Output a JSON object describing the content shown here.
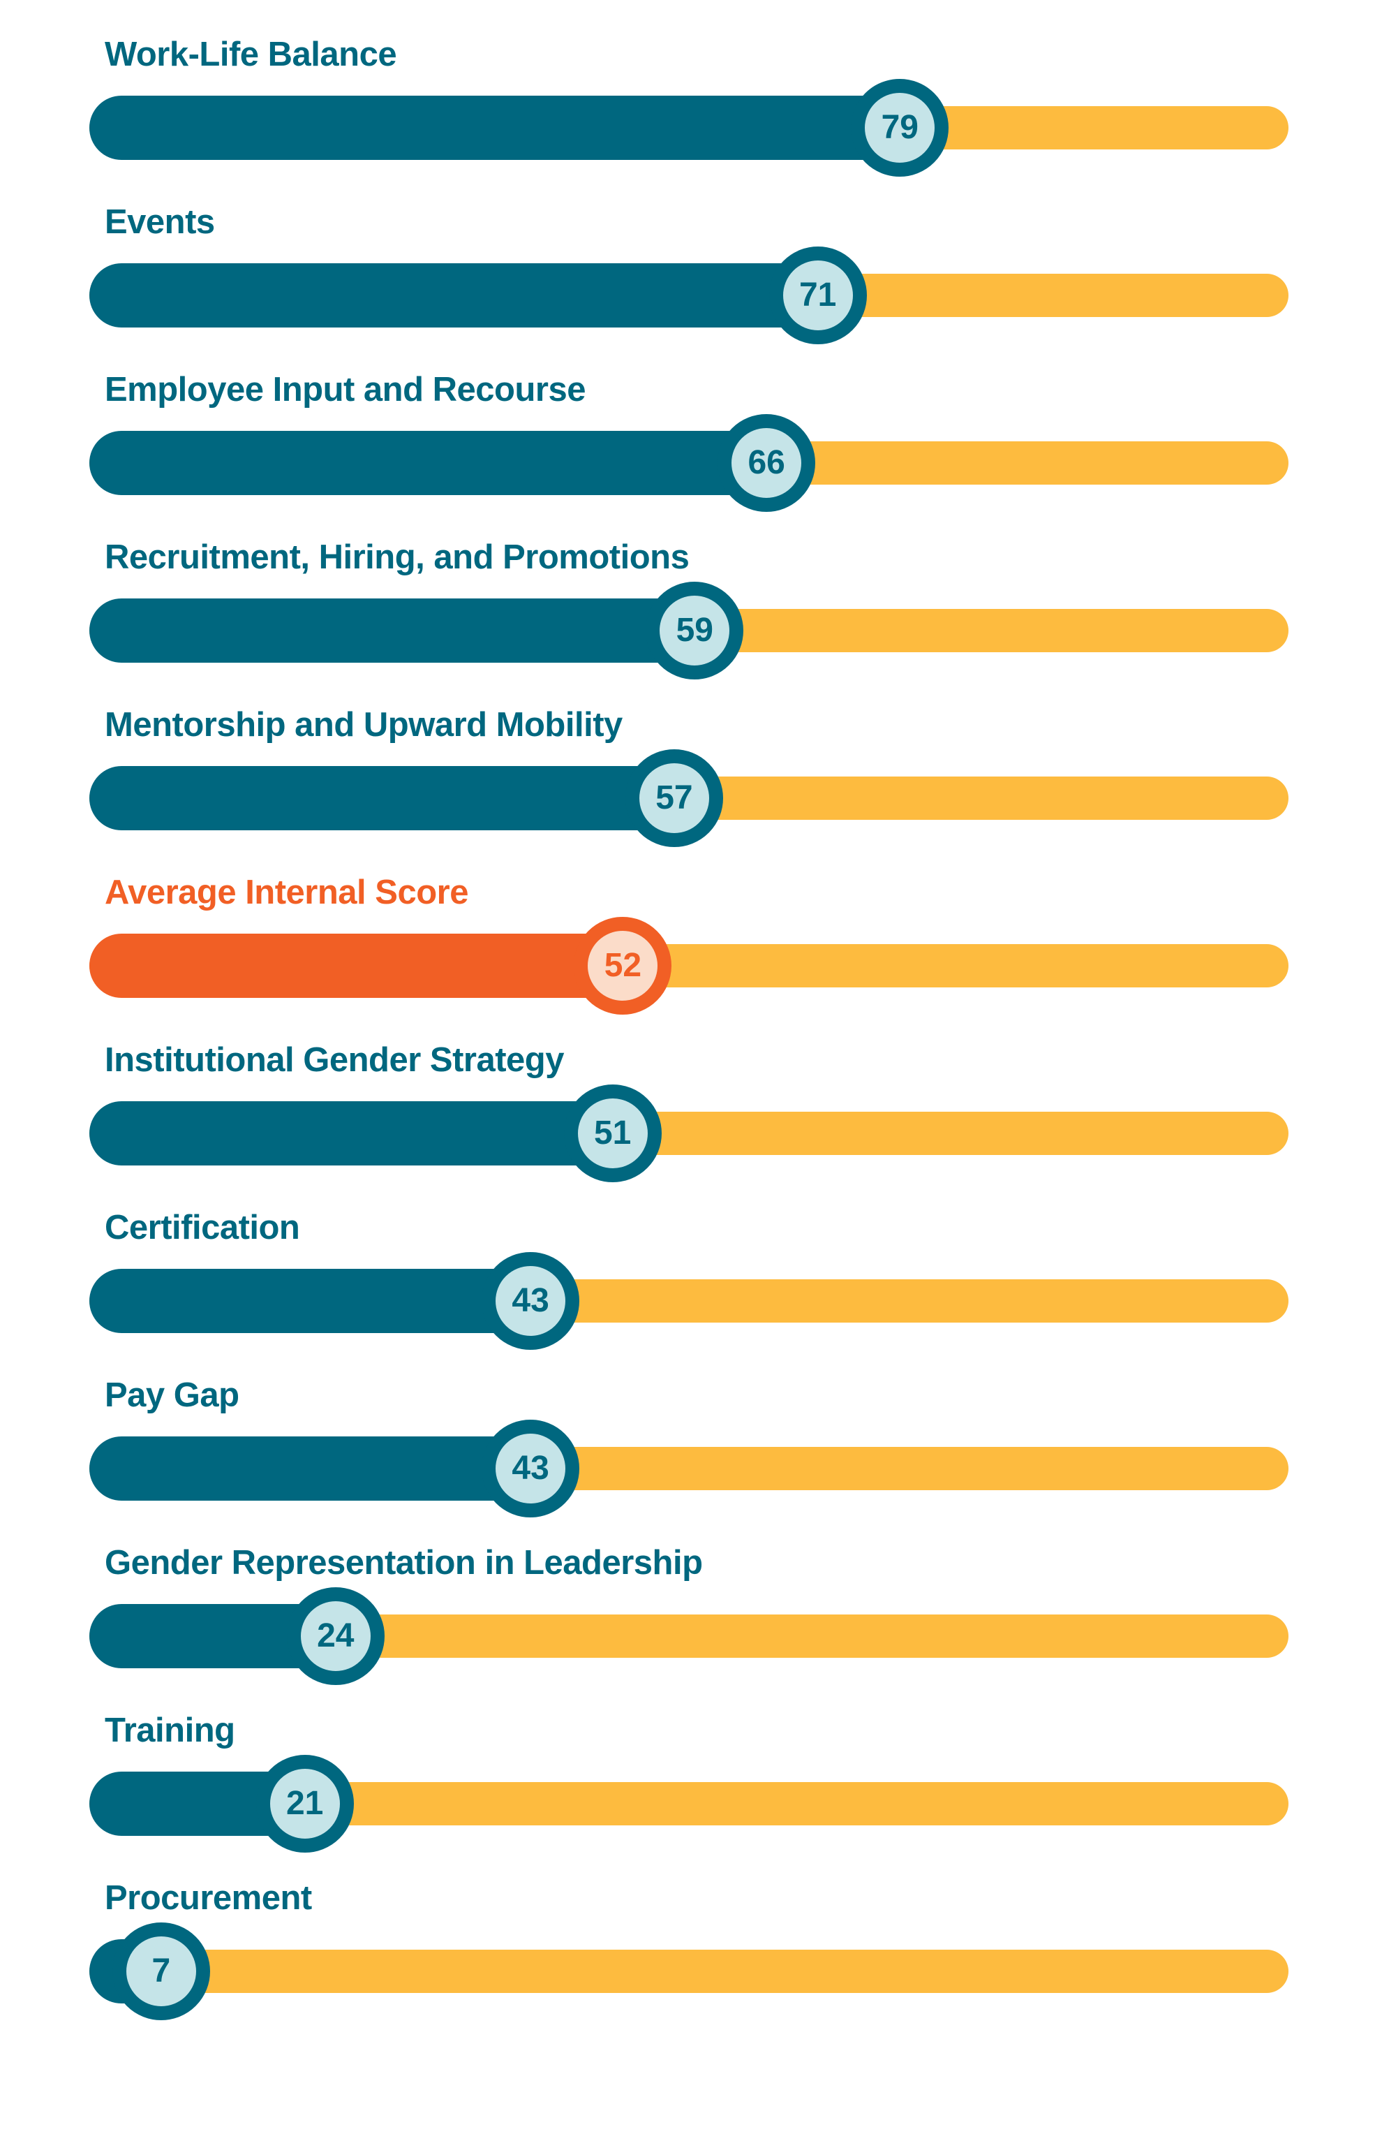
{
  "colors": {
    "bar": "#00677f",
    "track": "#fdbb3f",
    "highlight": "#f15f25",
    "marker_fill": "#c5e4e8",
    "marker_fill_highlight": "#fbdcc9",
    "label": "#00677f"
  },
  "chart_data": {
    "type": "bar",
    "orientation": "horizontal",
    "xlim": [
      0,
      100
    ],
    "categories": [
      "Work-Life Balance",
      "Events",
      "Employee Input and Recourse",
      "Recruitment, Hiring, and Promotions",
      "Mentorship and Upward Mobility",
      "Average Internal Score",
      "Institutional Gender Strategy",
      "Certification",
      "Pay Gap",
      "Gender Representation in Leadership",
      "Training",
      "Procurement"
    ],
    "values": [
      79,
      71,
      66,
      59,
      57,
      52,
      51,
      43,
      43,
      24,
      21,
      7
    ],
    "highlight": "Average Internal Score",
    "data_labels": true,
    "grid": false,
    "legend": "none"
  }
}
